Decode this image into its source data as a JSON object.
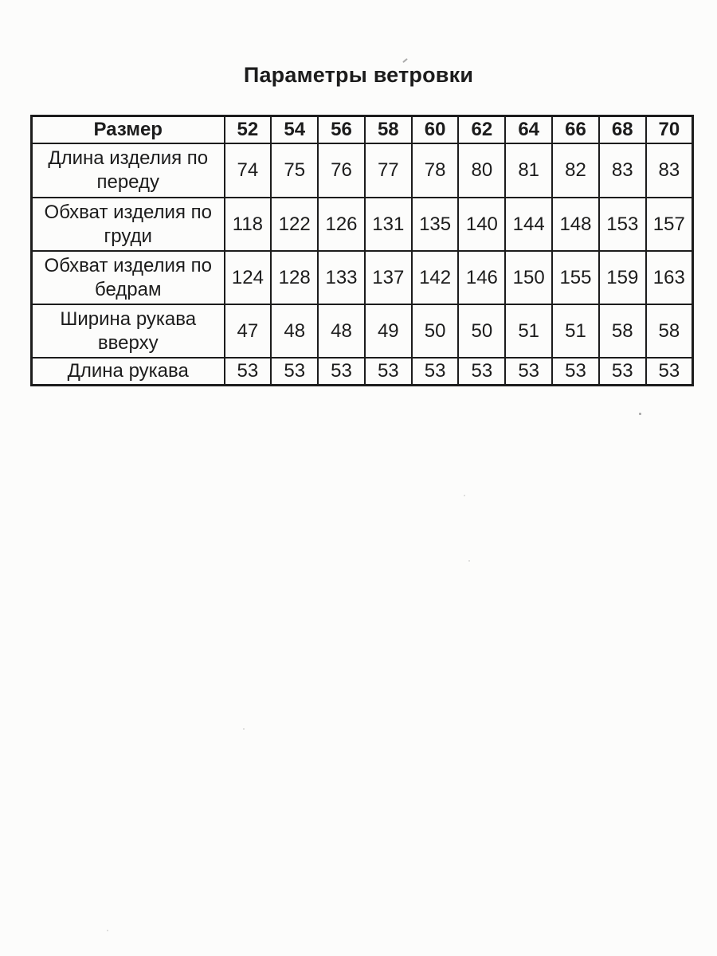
{
  "document": {
    "title": "Параметры ветровки"
  },
  "table": {
    "corner_label": "Размер",
    "sizes": [
      "52",
      "54",
      "56",
      "58",
      "60",
      "62",
      "64",
      "66",
      "68",
      "70"
    ],
    "rows": [
      {
        "label": "Длина изделия по переду",
        "values": [
          "74",
          "75",
          "76",
          "77",
          "78",
          "80",
          "81",
          "82",
          "83",
          "83"
        ]
      },
      {
        "label": "Обхват изделия по груди",
        "values": [
          "118",
          "122",
          "126",
          "131",
          "135",
          "140",
          "144",
          "148",
          "153",
          "157"
        ]
      },
      {
        "label": "Обхват изделия по бедрам",
        "values": [
          "124",
          "128",
          "133",
          "137",
          "142",
          "146",
          "150",
          "155",
          "159",
          "163"
        ]
      },
      {
        "label": "Ширина рукава вверху",
        "values": [
          "47",
          "48",
          "48",
          "49",
          "50",
          "50",
          "51",
          "51",
          "58",
          "58"
        ]
      },
      {
        "label": "Длина рукава",
        "values": [
          "53",
          "53",
          "53",
          "53",
          "53",
          "53",
          "53",
          "53",
          "53",
          "53"
        ]
      }
    ]
  },
  "colors": {
    "ink": "#1c1c1c",
    "paper": "#fcfcfb",
    "speck": "#8f8f8f"
  }
}
